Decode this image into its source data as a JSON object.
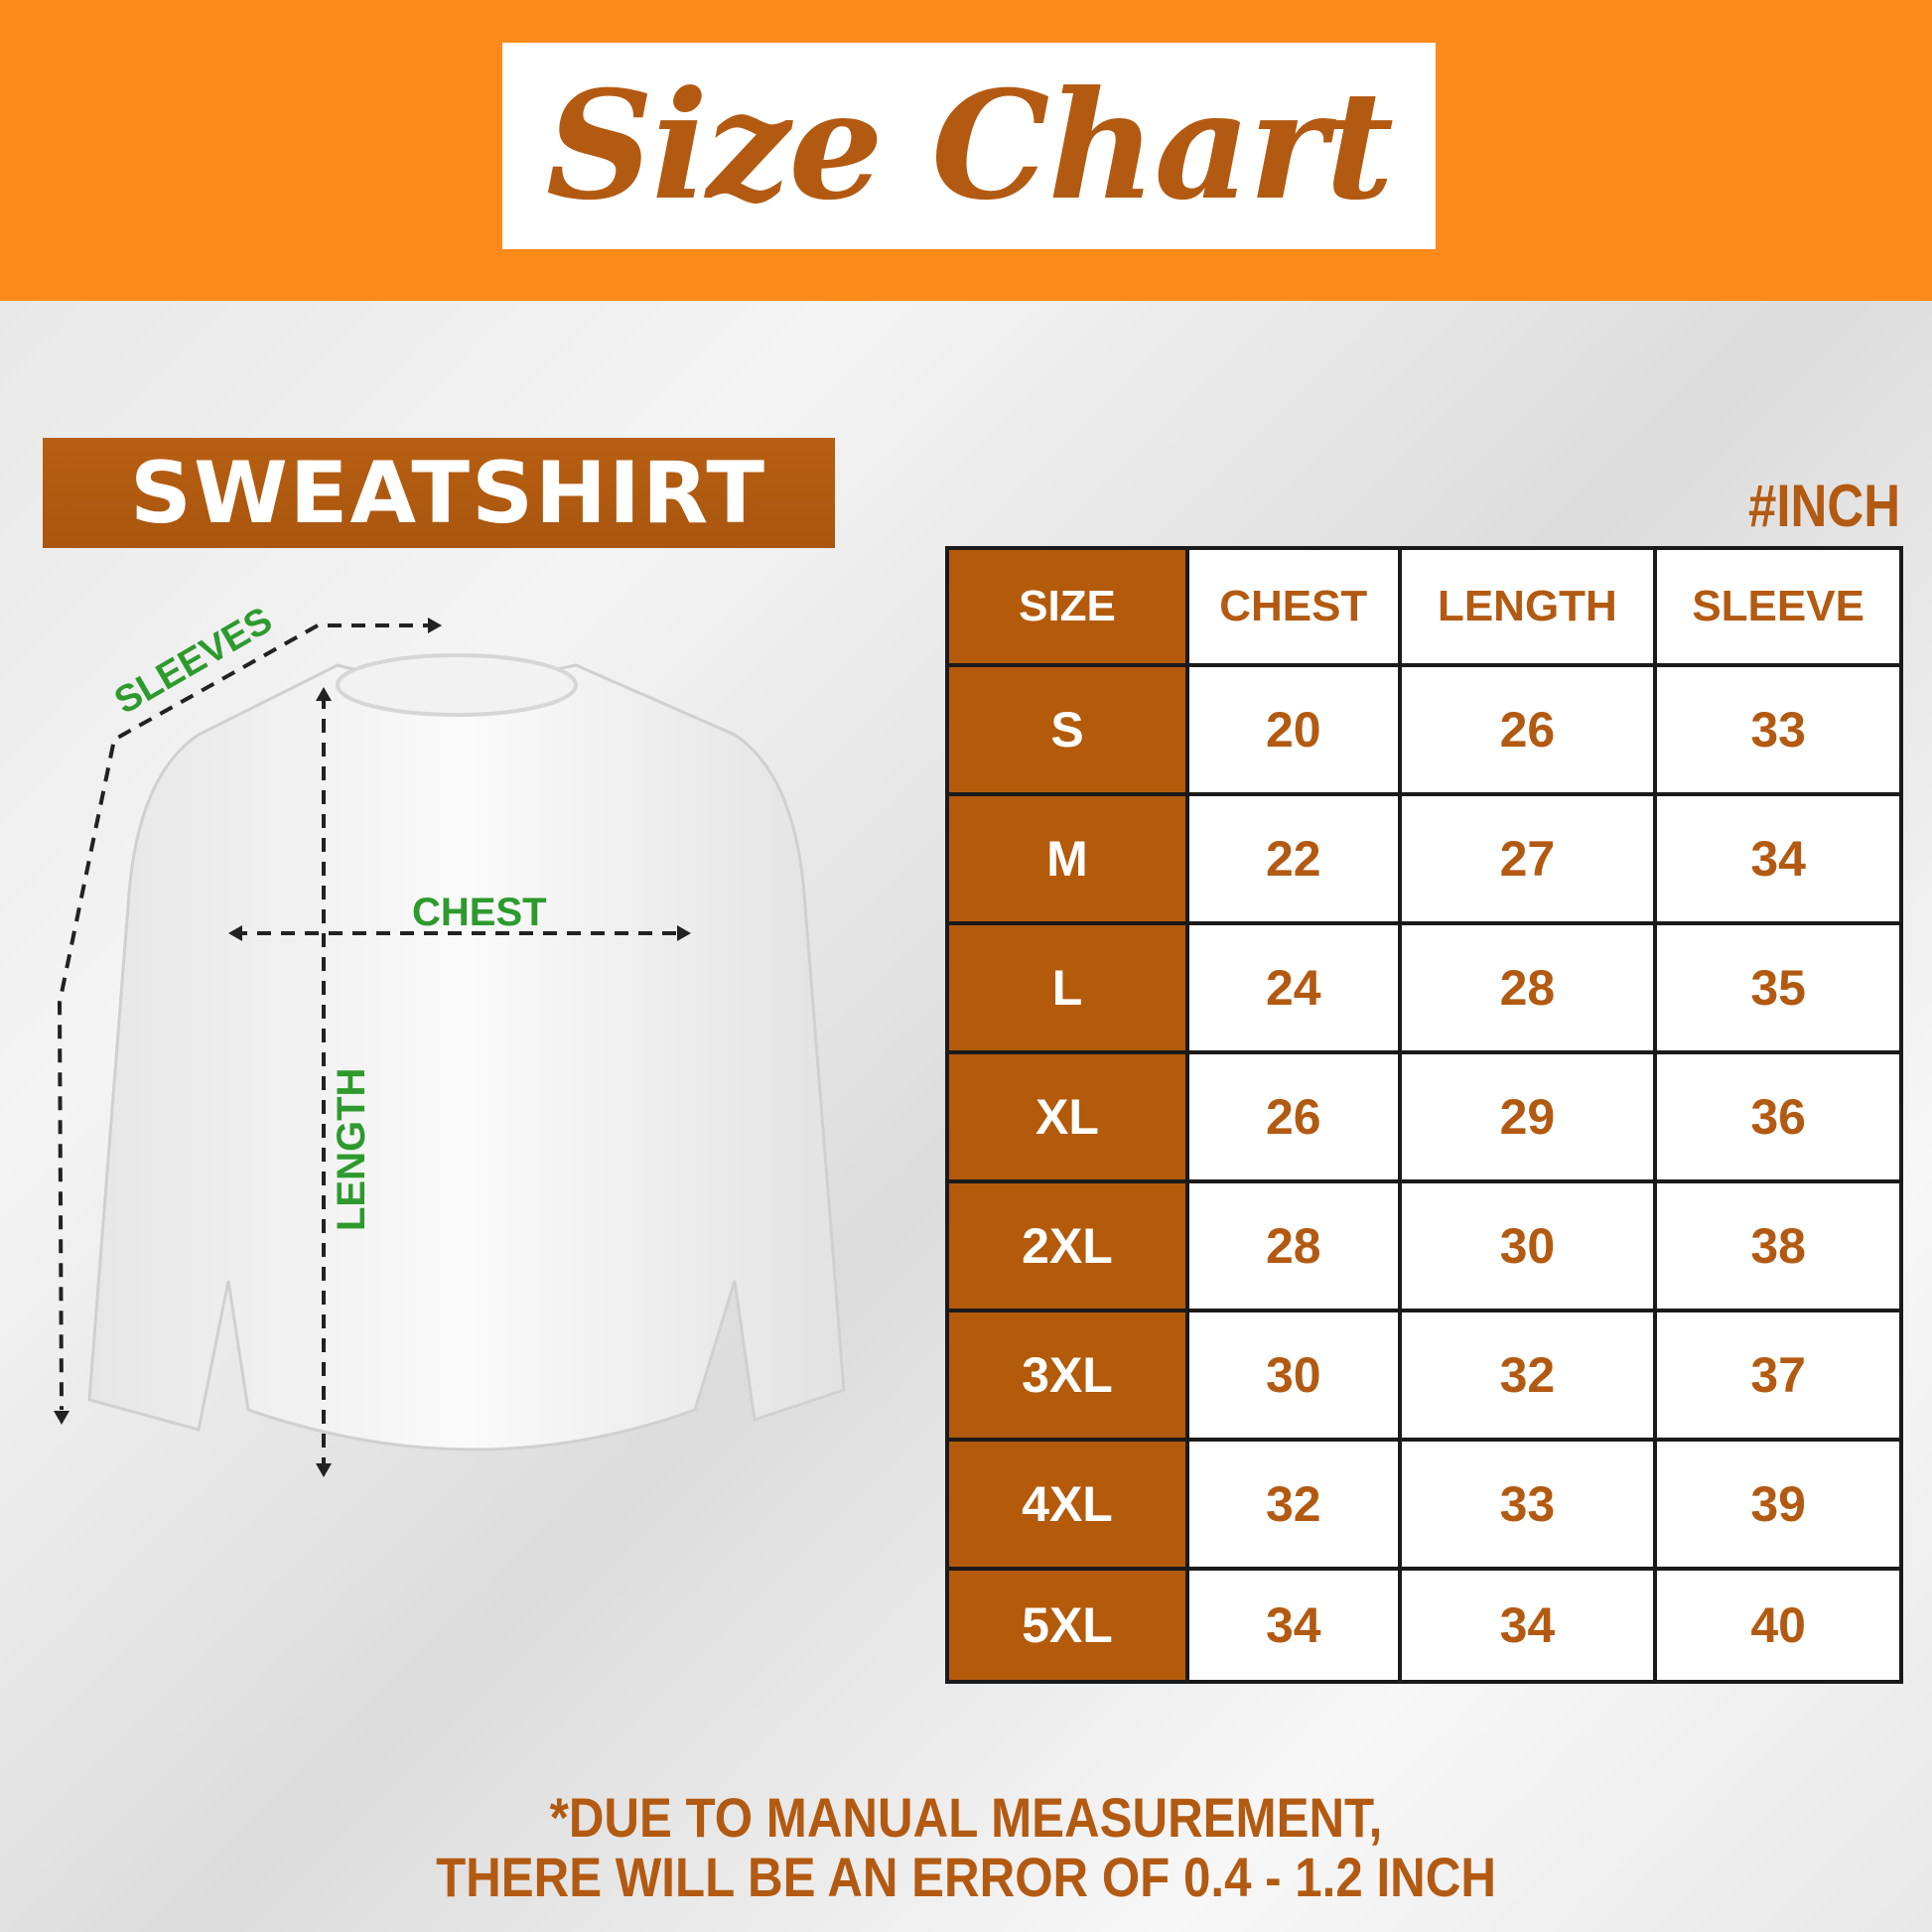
{
  "header": {
    "title": "Size Chart"
  },
  "product": {
    "label": "SWEATSHIRT",
    "unit": "#INCH"
  },
  "diagram": {
    "sleeves": "SLEEVES",
    "chest": "CHEST",
    "length": "LENGTH"
  },
  "table": {
    "columns": [
      "SIZE",
      "CHEST",
      "LENGTH",
      "SLEEVE"
    ],
    "rows": [
      [
        "S",
        "20",
        "26",
        "33"
      ],
      [
        "M",
        "22",
        "27",
        "34"
      ],
      [
        "L",
        "24",
        "28",
        "35"
      ],
      [
        "XL",
        "26",
        "29",
        "36"
      ],
      [
        "2XL",
        "28",
        "30",
        "38"
      ],
      [
        "3XL",
        "30",
        "32",
        "37"
      ],
      [
        "4XL",
        "32",
        "33",
        "39"
      ],
      [
        "5XL",
        "34",
        "34",
        "40"
      ]
    ]
  },
  "footer": {
    "line1": "*DUE TO MANUAL MEASUREMENT,",
    "line2": "THERE WILL BE AN ERROR OF 0.4 - 1.2 INCH"
  },
  "colors": {
    "orange": "#fb8a1b",
    "brown": "#b35a12",
    "green": "#2e9a2e"
  }
}
